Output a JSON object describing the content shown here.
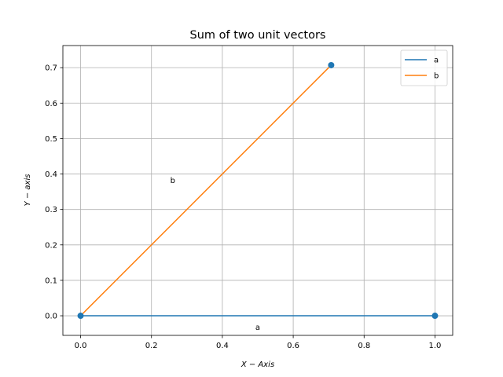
{
  "chart_data": {
    "type": "line",
    "title": "Sum of two unit vectors",
    "xlabel": "X − Axis",
    "ylabel": "Y − axis",
    "xlim": [
      -0.05,
      1.05
    ],
    "ylim": [
      -0.0553,
      0.7624
    ],
    "xticks": [
      0.0,
      0.2,
      0.4,
      0.6,
      0.8,
      1.0
    ],
    "yticks": [
      0.0,
      0.1,
      0.2,
      0.3,
      0.4,
      0.5,
      0.6,
      0.7
    ],
    "grid": true,
    "legend": "top-right",
    "series": [
      {
        "name": "a",
        "color": "#1f77b4",
        "x": [
          0.0,
          1.0
        ],
        "y": [
          0.0,
          0.0
        ]
      },
      {
        "name": "b",
        "color": "#ff7f0e",
        "x": [
          0.0,
          0.7071
        ],
        "y": [
          0.0,
          0.7071
        ]
      }
    ],
    "points": [
      {
        "x": 0.0,
        "y": 0.0
      },
      {
        "x": 1.0,
        "y": 0.0
      },
      {
        "x": 0.7071,
        "y": 0.7071
      }
    ],
    "point_color": "#1f77b4",
    "annotations": [
      {
        "text": "a",
        "x": 0.5,
        "y": -0.04
      },
      {
        "text": "b",
        "x": 0.26,
        "y": 0.375
      }
    ]
  }
}
